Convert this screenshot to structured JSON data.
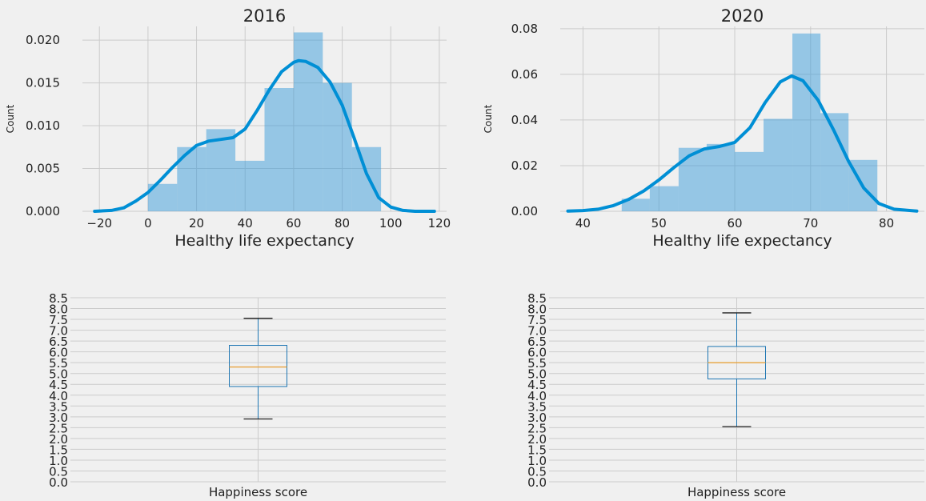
{
  "chart_data": [
    {
      "type": "histogram",
      "title": "2016",
      "xlabel": "Healthy life expectancy",
      "ylabel": "Count",
      "xlim": [
        -27,
        123
      ],
      "ylim": [
        0,
        0.0216
      ],
      "xticks": [
        -20,
        0,
        20,
        40,
        60,
        80,
        100,
        120
      ],
      "xtick_labels": [
        "−20",
        "0",
        "20",
        "40",
        "60",
        "80",
        "100",
        "120"
      ],
      "yticks": [
        0,
        0.005,
        0.01,
        0.015,
        0.02
      ],
      "ytick_labels": [
        "0.000",
        "0.005",
        "0.010",
        "0.015",
        "0.020"
      ],
      "grid": true,
      "bins": [
        {
          "x0": 0,
          "x1": 12,
          "value": 0.0032
        },
        {
          "x0": 12,
          "x1": 24,
          "value": 0.0075
        },
        {
          "x0": 24,
          "x1": 36,
          "value": 0.0096
        },
        {
          "x0": 36,
          "x1": 48,
          "value": 0.0059
        },
        {
          "x0": 48,
          "x1": 60,
          "value": 0.0144
        },
        {
          "x0": 60,
          "x1": 72,
          "value": 0.0209
        },
        {
          "x0": 72,
          "x1": 84,
          "value": 0.015
        },
        {
          "x0": 84,
          "x1": 96,
          "value": 0.0075
        }
      ],
      "kde": {
        "x": [
          -22,
          -15,
          -10,
          -5,
          0,
          5,
          10,
          15,
          20,
          25,
          30,
          35,
          40,
          45,
          50,
          55,
          60,
          62,
          65,
          70,
          75,
          80,
          85,
          90,
          95,
          100,
          105,
          110,
          118
        ],
        "y": [
          0,
          0.0001,
          0.0004,
          0.0012,
          0.0022,
          0.0036,
          0.0051,
          0.0065,
          0.0077,
          0.0082,
          0.0084,
          0.0086,
          0.0096,
          0.0118,
          0.0142,
          0.0163,
          0.0174,
          0.0176,
          0.0175,
          0.0168,
          0.0151,
          0.0124,
          0.0085,
          0.0044,
          0.0016,
          0.0005,
          0.0001,
          0,
          0
        ]
      },
      "colors": {
        "bar": "#3a9bd9",
        "line": "#008fd5"
      }
    },
    {
      "type": "histogram",
      "title": "2020",
      "xlabel": "Healthy life expectancy",
      "ylabel": "Count",
      "xlim": [
        37,
        85
      ],
      "ylim": [
        0,
        0.081
      ],
      "xticks": [
        40,
        50,
        60,
        70,
        80
      ],
      "xtick_labels": [
        "40",
        "50",
        "60",
        "70",
        "80"
      ],
      "yticks": [
        0,
        0.02,
        0.04,
        0.06,
        0.08
      ],
      "ytick_labels": [
        "0.00",
        "0.02",
        "0.04",
        "0.06",
        "0.08"
      ],
      "grid": true,
      "bins": [
        {
          "x0": 45.1,
          "x1": 48.8,
          "value": 0.0055
        },
        {
          "x0": 48.8,
          "x1": 52.6,
          "value": 0.011
        },
        {
          "x0": 52.6,
          "x1": 56.3,
          "value": 0.0278
        },
        {
          "x0": 56.3,
          "x1": 60.0,
          "value": 0.0295
        },
        {
          "x0": 60.0,
          "x1": 63.8,
          "value": 0.026
        },
        {
          "x0": 63.8,
          "x1": 67.6,
          "value": 0.0405
        },
        {
          "x0": 67.6,
          "x1": 71.3,
          "value": 0.0779
        },
        {
          "x0": 71.3,
          "x1": 75.0,
          "value": 0.043
        },
        {
          "x0": 75.0,
          "x1": 78.8,
          "value": 0.0225
        }
      ],
      "kde": {
        "x": [
          38,
          40,
          42,
          44,
          46,
          48,
          50,
          52,
          54,
          56,
          58,
          60,
          62,
          64,
          66,
          67.5,
          69,
          71,
          73,
          75,
          77,
          79,
          81,
          84
        ],
        "y": [
          0.0001,
          0.0003,
          0.0009,
          0.0025,
          0.0052,
          0.0089,
          0.0137,
          0.0192,
          0.0243,
          0.0273,
          0.0284,
          0.0302,
          0.0366,
          0.0476,
          0.0567,
          0.0593,
          0.0572,
          0.0486,
          0.0358,
          0.0219,
          0.0102,
          0.0034,
          0.0009,
          0.0001
        ]
      },
      "colors": {
        "bar": "#3a9bd9",
        "line": "#008fd5"
      }
    },
    {
      "type": "box",
      "title": "",
      "xlabel": "Happiness score",
      "ylim": [
        0,
        8.5
      ],
      "yticks": [
        0,
        0.5,
        1,
        1.5,
        2,
        2.5,
        3,
        3.5,
        4,
        4.5,
        5,
        5.5,
        6,
        6.5,
        7,
        7.5,
        8,
        8.5
      ],
      "ytick_labels": [
        "0.0",
        "0.5",
        "1.0",
        "1.5",
        "2.0",
        "2.5",
        "3.0",
        "3.5",
        "4.0",
        "4.5",
        "5.0",
        "5.5",
        "6.0",
        "6.5",
        "7.0",
        "7.5",
        "8.0",
        "8.5"
      ],
      "grid": true,
      "box": {
        "whisker_low": 2.9,
        "q1": 4.4,
        "median": 5.3,
        "q3": 6.3,
        "whisker_high": 7.55
      },
      "colors": {
        "box": "#1f77b4",
        "median": "#e8a33d",
        "whisker": "#1f77b4"
      }
    },
    {
      "type": "box",
      "title": "",
      "xlabel": "Happiness score",
      "ylim": [
        0,
        8.5
      ],
      "yticks": [
        0,
        0.5,
        1,
        1.5,
        2,
        2.5,
        3,
        3.5,
        4,
        4.5,
        5,
        5.5,
        6,
        6.5,
        7,
        7.5,
        8,
        8.5
      ],
      "ytick_labels": [
        "0.0",
        "0.5",
        "1.0",
        "1.5",
        "2.0",
        "2.5",
        "3.0",
        "3.5",
        "4.0",
        "4.5",
        "5.0",
        "5.5",
        "6.0",
        "6.5",
        "7.0",
        "7.5",
        "8.0",
        "8.5"
      ],
      "grid": true,
      "box": {
        "whisker_low": 2.55,
        "q1": 4.75,
        "median": 5.5,
        "q3": 6.25,
        "whisker_high": 7.8
      },
      "colors": {
        "box": "#1f77b4",
        "median": "#e8a33d",
        "whisker": "#1f77b4"
      }
    }
  ]
}
